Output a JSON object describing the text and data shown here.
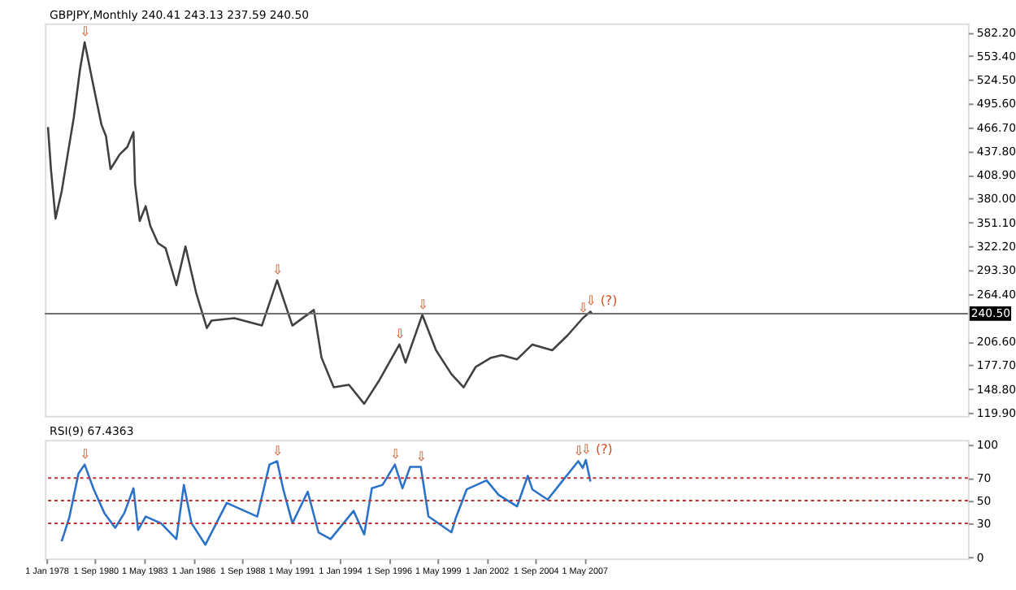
{
  "chart_data": [
    {
      "type": "line",
      "title": "GBPJPY,Monthly  240.41 243.13 237.59 240.50",
      "color": "#404040",
      "x": [
        "1978-02",
        "1978-04",
        "1978-07",
        "1978-11",
        "1979-03",
        "1979-07",
        "1979-11",
        "1980-02",
        "1980-05",
        "1980-08",
        "1980-10",
        "1981-01",
        "1981-04",
        "1981-07",
        "1981-10",
        "1982-01",
        "1982-06",
        "1982-10",
        "1982-11",
        "1983-02",
        "1983-06",
        "1983-09",
        "1984-02",
        "1984-07",
        "1985-02",
        "1985-08",
        "1986-03",
        "1986-10",
        "1987-01",
        "1988-04",
        "1989-10",
        "1990-08",
        "1991-06",
        "1992-08",
        "1993-01",
        "1993-09",
        "1994-07",
        "1995-05",
        "1996-03",
        "1997-04",
        "1997-08",
        "1998-07",
        "1999-04",
        "2000-02",
        "2000-10",
        "2001-06",
        "2002-04",
        "2002-11",
        "2003-09",
        "2004-07",
        "2005-08",
        "2006-06",
        "2007-04",
        "2007-09",
        "2007-10"
      ],
      "values": [
        467,
        416,
        356,
        389,
        434,
        479,
        537,
        570,
        543,
        515,
        497,
        470,
        456,
        416,
        425,
        434,
        443,
        461,
        398,
        353,
        371,
        347,
        326,
        320,
        275,
        322,
        266,
        223,
        232,
        235,
        226,
        281,
        226,
        245,
        187,
        151,
        154,
        131,
        160,
        203,
        181,
        239,
        196,
        167,
        151,
        176,
        187,
        190,
        185,
        203,
        196,
        214,
        235,
        243,
        240.5
      ],
      "xlim": [
        "1977-12",
        "2028-04"
      ],
      "ylim": [
        116.3,
        593.0
      ],
      "yticks": [
        {
          "value": 119.9,
          "label": "119.90"
        },
        {
          "value": 148.8,
          "label": "148.80"
        },
        {
          "value": 177.7,
          "label": "177.70"
        },
        {
          "value": 206.6,
          "label": "206.60"
        },
        {
          "value": 264.4,
          "label": "264.40"
        },
        {
          "value": 293.3,
          "label": "293.30"
        },
        {
          "value": 322.2,
          "label": "322.20"
        },
        {
          "value": 351.1,
          "label": "351.10"
        },
        {
          "value": 380.0,
          "label": "380.00"
        },
        {
          "value": 408.9,
          "label": "408.90"
        },
        {
          "value": 437.8,
          "label": "437.80"
        },
        {
          "value": 466.7,
          "label": "466.70"
        },
        {
          "value": 495.6,
          "label": "495.60"
        },
        {
          "value": 524.5,
          "label": "524.50"
        },
        {
          "value": 553.4,
          "label": "553.40"
        },
        {
          "value": 582.2,
          "label": "582.20"
        }
      ],
      "ref_lines": [
        {
          "axis": "y",
          "value": 240.5,
          "label": "240.50",
          "color": "#707070"
        }
      ],
      "annotations": [
        {
          "text": "⇩",
          "x": "1980-02",
          "y": 570
        },
        {
          "text": "⇩",
          "x": "1990-08",
          "y": 281
        },
        {
          "text": "⇩",
          "x": "1997-04",
          "y": 203
        },
        {
          "text": "⇩",
          "x": "1998-07",
          "y": 239
        },
        {
          "text": "⇩",
          "x": "2007-04",
          "y": 235
        },
        {
          "text": "⇩ (?)",
          "x": "2007-09",
          "y": 243
        }
      ],
      "tick_labels": "y"
    },
    {
      "type": "line",
      "title": "RSI(9) 67.4363",
      "color": "#2a72c8",
      "x": [
        "1978-11",
        "1979-04",
        "1979-10",
        "1980-02",
        "1980-08",
        "1981-03",
        "1981-10",
        "1982-04",
        "1982-10",
        "1983-01",
        "1983-06",
        "1984-04",
        "1985-02",
        "1985-07",
        "1985-12",
        "1986-09",
        "1987-11",
        "1989-07",
        "1990-03",
        "1990-08",
        "1990-12",
        "1991-06",
        "1992-04",
        "1992-11",
        "1993-07",
        "1994-10",
        "1995-05",
        "1995-10",
        "1996-05",
        "1997-01",
        "1997-06",
        "1997-11",
        "1998-06",
        "1998-11",
        "2000-02",
        "2000-05",
        "2000-12",
        "2002-01",
        "2002-09",
        "2003-09",
        "2004-04",
        "2004-07",
        "2005-05",
        "2006-03",
        "2007-01",
        "2007-04",
        "2007-06",
        "2007-09"
      ],
      "values": [
        14,
        35,
        74,
        82,
        60,
        39,
        26,
        39,
        61,
        24,
        36,
        30,
        16,
        64,
        30,
        11,
        48,
        36,
        82,
        85,
        60,
        30,
        58,
        22,
        16,
        41,
        20,
        61,
        64,
        82,
        61,
        80,
        80,
        36,
        22,
        35,
        60,
        68,
        55,
        45,
        72,
        60,
        51,
        68,
        85,
        79,
        86,
        67
      ],
      "xlim": [
        "1977-12",
        "2028-04"
      ],
      "ylim": [
        -1.2,
        103.8
      ],
      "yticks": [
        0,
        30,
        50,
        70,
        100
      ],
      "xticks": [
        {
          "value": "1978-01-01",
          "label": "1 Jan 1978"
        },
        {
          "value": "1980-09-01",
          "label": "1 Sep 1980"
        },
        {
          "value": "1983-05-01",
          "label": "1 May 1983"
        },
        {
          "value": "1986-01-01",
          "label": "1 Jan 1986"
        },
        {
          "value": "1988-09-01",
          "label": "1 Sep 1988"
        },
        {
          "value": "1991-05-01",
          "label": "1 May 1991"
        },
        {
          "value": "1994-01-01",
          "label": "1 Jan 1994"
        },
        {
          "value": "1996-09-01",
          "label": "1 Sep 1996"
        },
        {
          "value": "1999-05-01",
          "label": "1 May 1999"
        },
        {
          "value": "2002-01-01",
          "label": "1 Jan 2002"
        },
        {
          "value": "2004-09-01",
          "label": "1 Sep 2004"
        },
        {
          "value": "2007-05-01",
          "label": "1 May 2007"
        }
      ],
      "ref_lines": [
        {
          "axis": "y",
          "value": 70,
          "color": "#c03030",
          "line_style": "dashed"
        },
        {
          "axis": "y",
          "value": 50,
          "color": "#c03030",
          "line_style": "dashed"
        },
        {
          "axis": "y",
          "value": 30,
          "color": "#c03030",
          "line_style": "dashed"
        }
      ],
      "annotations": [
        {
          "text": "⇩",
          "x": "1980-02",
          "y": 82
        },
        {
          "text": "⇩",
          "x": "1990-08",
          "y": 85
        },
        {
          "text": "⇩",
          "x": "1997-01",
          "y": 82
        },
        {
          "text": "⇩",
          "x": "1998-06",
          "y": 80
        },
        {
          "text": "⇩",
          "x": "2007-01",
          "y": 85
        },
        {
          "text": "⇩ (?)",
          "x": "2007-06",
          "y": 86
        }
      ]
    }
  ]
}
